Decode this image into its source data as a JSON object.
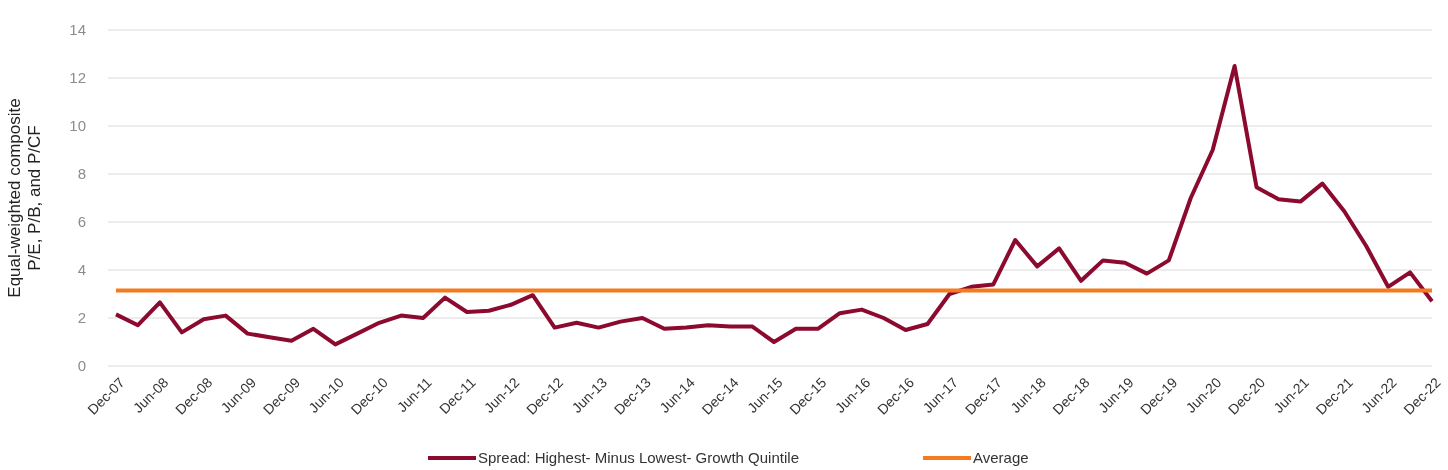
{
  "chart_data": {
    "type": "line",
    "ylabel": "Equal-weighted composite\nP/E, P/B, and P/CF",
    "categories": [
      "Dec-07",
      null,
      "Jun-08",
      null,
      "Dec-08",
      null,
      "Jun-09",
      null,
      "Dec-09",
      null,
      "Jun-10",
      null,
      "Dec-10",
      null,
      "Jun-11",
      null,
      "Dec-11",
      null,
      "Jun-12",
      null,
      "Dec-12",
      null,
      "Jun-13",
      null,
      "Dec-13",
      null,
      "Jun-14",
      null,
      "Dec-14",
      null,
      "Jun-15",
      null,
      "Dec-15",
      null,
      "Jun-16",
      null,
      "Dec-16",
      null,
      "Jun-17",
      null,
      "Dec-17",
      null,
      "Jun-18",
      null,
      "Dec-18",
      null,
      "Jun-19",
      null,
      "Dec-19",
      null,
      "Jun-20",
      null,
      "Dec-20",
      null,
      "Jun-21",
      null,
      "Dec-21",
      null,
      "Jun-22",
      null,
      "Dec-22"
    ],
    "series": [
      {
        "name": "Spread: Highest- Minus Lowest- Growth Quintile",
        "color": "#8b0a2e",
        "values": [
          2.15,
          1.7,
          2.65,
          1.4,
          1.95,
          2.1,
          1.35,
          1.2,
          1.05,
          1.55,
          0.9,
          1.35,
          1.8,
          2.1,
          2.0,
          2.85,
          2.25,
          2.3,
          2.55,
          2.95,
          1.6,
          1.8,
          1.6,
          1.85,
          2.0,
          1.55,
          1.6,
          1.7,
          1.65,
          1.65,
          1.0,
          1.55,
          1.55,
          2.2,
          2.35,
          2.0,
          1.5,
          1.75,
          3.0,
          3.3,
          3.4,
          5.25,
          4.15,
          4.9,
          3.55,
          4.4,
          4.3,
          3.85,
          4.4,
          7.0,
          9.0,
          12.5,
          7.45,
          6.95,
          6.85,
          7.6,
          6.45,
          5.0,
          3.3,
          3.9,
          2.7
        ]
      },
      {
        "name": "Average",
        "color": "#f47b20",
        "values": [
          3.15,
          3.15,
          3.15,
          3.15,
          3.15,
          3.15,
          3.15,
          3.15,
          3.15,
          3.15,
          3.15,
          3.15,
          3.15,
          3.15,
          3.15,
          3.15,
          3.15,
          3.15,
          3.15,
          3.15,
          3.15,
          3.15,
          3.15,
          3.15,
          3.15,
          3.15,
          3.15,
          3.15,
          3.15,
          3.15,
          3.15,
          3.15,
          3.15,
          3.15,
          3.15,
          3.15,
          3.15,
          3.15,
          3.15,
          3.15,
          3.15,
          3.15,
          3.15,
          3.15,
          3.15,
          3.15,
          3.15,
          3.15,
          3.15,
          3.15,
          3.15,
          3.15,
          3.15,
          3.15,
          3.15,
          3.15,
          3.15,
          3.15,
          3.15,
          3.15,
          3.15
        ]
      }
    ],
    "ylim": [
      0,
      14
    ],
    "yticks": [
      0,
      2,
      4,
      6,
      8,
      10,
      12,
      14
    ],
    "grid": "y",
    "legend": "bottom"
  }
}
